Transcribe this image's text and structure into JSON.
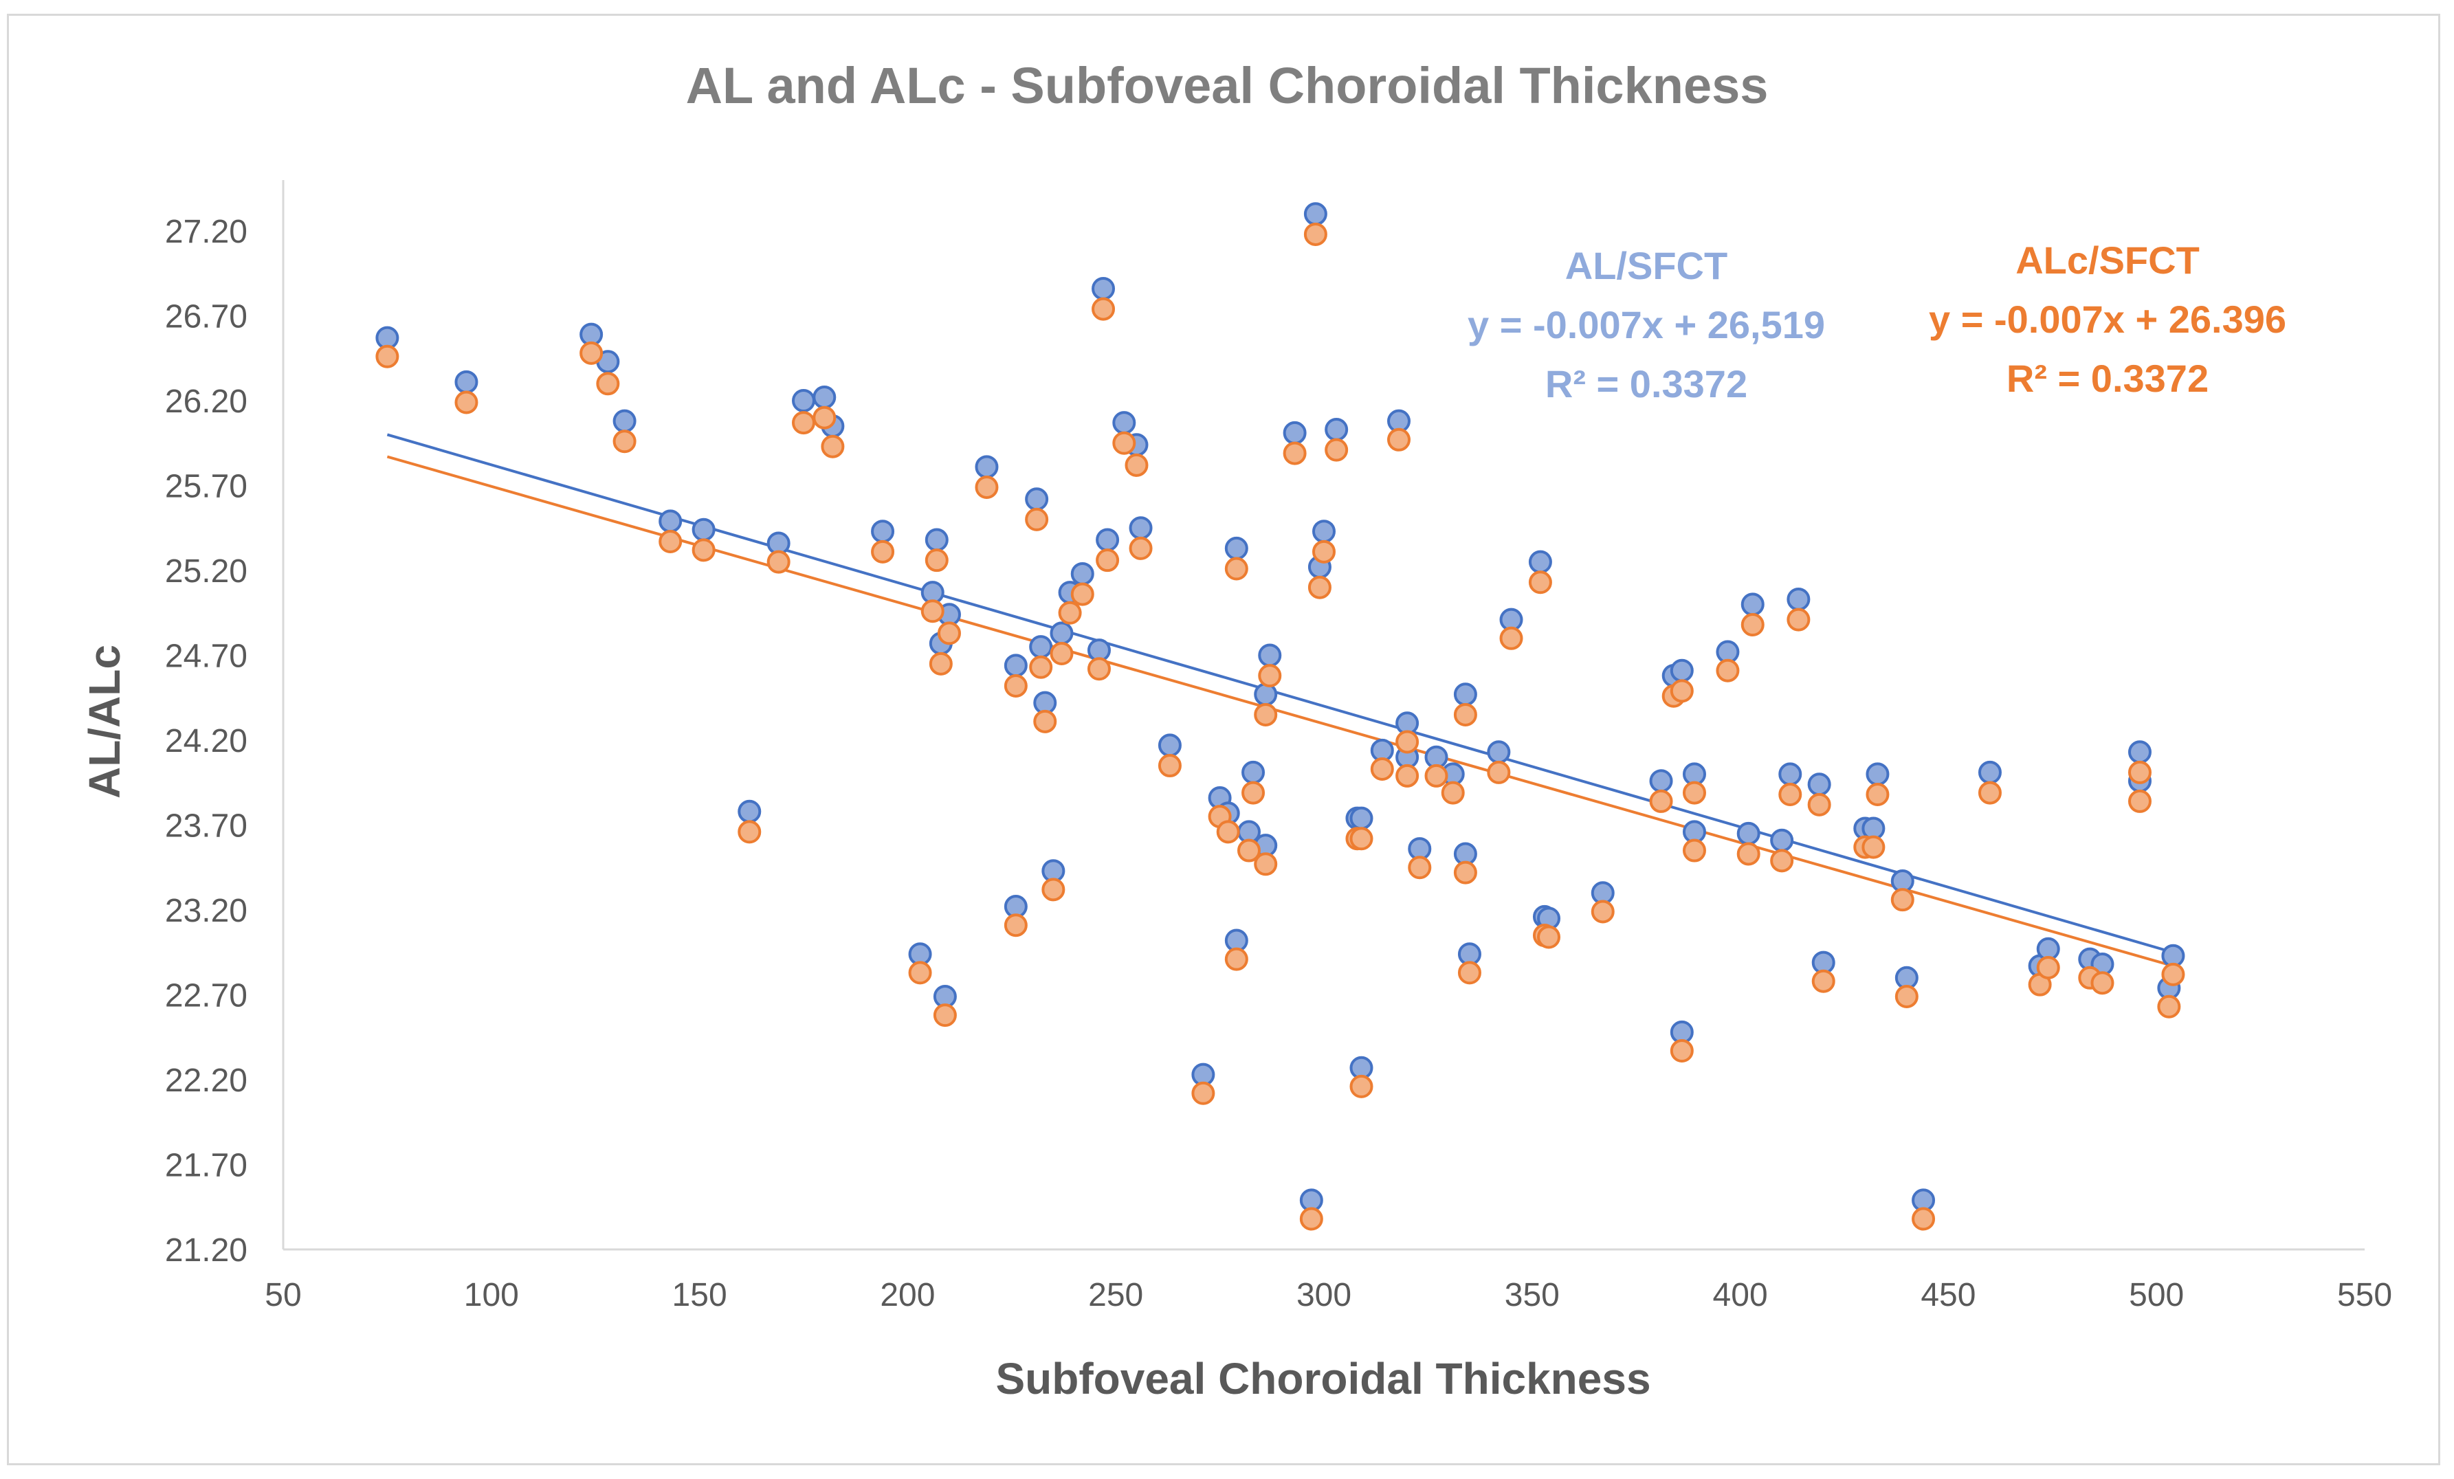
{
  "chart_data": {
    "type": "scatter",
    "title": "AL and ALc - Subfoveal Choroidal Thickness",
    "xlabel": "Subfoveal Choroidal Thickness",
    "ylabel": "AL/ALc",
    "xlim": [
      50,
      550
    ],
    "ylim": [
      21.2,
      27.5
    ],
    "xticks": [
      50,
      100,
      150,
      200,
      250,
      300,
      350,
      400,
      450,
      500,
      550
    ],
    "yticks": [
      21.2,
      21.7,
      22.2,
      22.7,
      23.2,
      23.7,
      24.2,
      24.7,
      25.2,
      25.7,
      26.2,
      26.7,
      27.2
    ],
    "ytick_labels": [
      "21.20",
      "21.70",
      "22.20",
      "22.70",
      "23.20",
      "23.70",
      "24.20",
      "24.70",
      "25.20",
      "25.70",
      "26.20",
      "26.70",
      "27.20"
    ],
    "grid": false,
    "series": [
      {
        "name": "AL",
        "color": "#8faadc",
        "edge_color": "#4472c4",
        "trendline": {
          "x": [
            75,
            504
          ],
          "y": [
            26.0,
            22.95
          ]
        },
        "points": [
          [
            75,
            26.57
          ],
          [
            94,
            26.31
          ],
          [
            124,
            26.59
          ],
          [
            128,
            26.43
          ],
          [
            132,
            26.08
          ],
          [
            143,
            25.49
          ],
          [
            151,
            25.44
          ],
          [
            162,
            23.78
          ],
          [
            169,
            25.36
          ],
          [
            175,
            26.2
          ],
          [
            180,
            26.22
          ],
          [
            182,
            26.05
          ],
          [
            194,
            25.43
          ],
          [
            203,
            22.94
          ],
          [
            206,
            25.07
          ],
          [
            207,
            25.38
          ],
          [
            208,
            24.77
          ],
          [
            209,
            22.69
          ],
          [
            210,
            24.94
          ],
          [
            219,
            25.81
          ],
          [
            226,
            24.64
          ],
          [
            226,
            23.22
          ],
          [
            231,
            25.62
          ],
          [
            232,
            24.75
          ],
          [
            233,
            24.42
          ],
          [
            235,
            23.43
          ],
          [
            237,
            24.83
          ],
          [
            239,
            25.07
          ],
          [
            242,
            25.18
          ],
          [
            246,
            24.73
          ],
          [
            247,
            26.86
          ],
          [
            248,
            25.38
          ],
          [
            252,
            26.07
          ],
          [
            255,
            25.94
          ],
          [
            256,
            25.45
          ],
          [
            263,
            24.17
          ],
          [
            271,
            22.23
          ],
          [
            275,
            23.86
          ],
          [
            277,
            23.77
          ],
          [
            279,
            23.02
          ],
          [
            279,
            25.33
          ],
          [
            282,
            23.66
          ],
          [
            283,
            24.01
          ],
          [
            286,
            23.58
          ],
          [
            286,
            24.47
          ],
          [
            287,
            24.7
          ],
          [
            293,
            26.01
          ],
          [
            297,
            21.49
          ],
          [
            298,
            27.3
          ],
          [
            299,
            25.22
          ],
          [
            300,
            25.43
          ],
          [
            303,
            26.03
          ],
          [
            308,
            23.74
          ],
          [
            309,
            23.74
          ],
          [
            309,
            22.27
          ],
          [
            314,
            24.14
          ],
          [
            318,
            26.08
          ],
          [
            320,
            24.3
          ],
          [
            320,
            24.1
          ],
          [
            323,
            23.56
          ],
          [
            327,
            24.1
          ],
          [
            331,
            24.0
          ],
          [
            334,
            24.47
          ],
          [
            334,
            23.53
          ],
          [
            335,
            22.94
          ],
          [
            342,
            24.13
          ],
          [
            345,
            24.91
          ],
          [
            352,
            25.25
          ],
          [
            353,
            23.16
          ],
          [
            354,
            23.15
          ],
          [
            367,
            23.3
          ],
          [
            381,
            23.96
          ],
          [
            384,
            24.58
          ],
          [
            386,
            24.61
          ],
          [
            386,
            22.48
          ],
          [
            389,
            24.0
          ],
          [
            389,
            23.66
          ],
          [
            397,
            24.72
          ],
          [
            402,
            23.65
          ],
          [
            403,
            25.0
          ],
          [
            410,
            23.61
          ],
          [
            412,
            24.0
          ],
          [
            414,
            25.03
          ],
          [
            419,
            23.94
          ],
          [
            420,
            22.89
          ],
          [
            430,
            23.68
          ],
          [
            432,
            23.68
          ],
          [
            433,
            24.0
          ],
          [
            439,
            23.37
          ],
          [
            440,
            22.8
          ],
          [
            444,
            21.49
          ],
          [
            460,
            24.01
          ],
          [
            472,
            22.87
          ],
          [
            474,
            22.97
          ],
          [
            484,
            22.91
          ],
          [
            487,
            22.88
          ],
          [
            496,
            24.13
          ],
          [
            496,
            23.96
          ],
          [
            503,
            22.74
          ],
          [
            504,
            22.93
          ]
        ]
      },
      {
        "name": "ALc",
        "color": "#f4b183",
        "edge_color": "#ed7d31",
        "trendline": {
          "x": [
            75,
            504
          ],
          "y": [
            25.87,
            22.87
          ]
        },
        "points": [
          [
            75,
            26.46
          ],
          [
            94,
            26.19
          ],
          [
            124,
            26.48
          ],
          [
            128,
            26.3
          ],
          [
            132,
            25.96
          ],
          [
            143,
            25.37
          ],
          [
            151,
            25.32
          ],
          [
            162,
            23.66
          ],
          [
            169,
            25.25
          ],
          [
            175,
            26.07
          ],
          [
            180,
            26.1
          ],
          [
            182,
            25.93
          ],
          [
            194,
            25.31
          ],
          [
            203,
            22.83
          ],
          [
            206,
            24.96
          ],
          [
            207,
            25.26
          ],
          [
            208,
            24.65
          ],
          [
            209,
            22.58
          ],
          [
            210,
            24.83
          ],
          [
            219,
            25.69
          ],
          [
            226,
            24.52
          ],
          [
            226,
            23.11
          ],
          [
            231,
            25.5
          ],
          [
            232,
            24.63
          ],
          [
            233,
            24.31
          ],
          [
            235,
            23.32
          ],
          [
            237,
            24.71
          ],
          [
            239,
            24.95
          ],
          [
            242,
            25.06
          ],
          [
            246,
            24.62
          ],
          [
            247,
            26.74
          ],
          [
            248,
            25.26
          ],
          [
            252,
            25.95
          ],
          [
            255,
            25.82
          ],
          [
            256,
            25.33
          ],
          [
            263,
            24.05
          ],
          [
            271,
            22.12
          ],
          [
            275,
            23.75
          ],
          [
            277,
            23.66
          ],
          [
            279,
            22.91
          ],
          [
            279,
            25.21
          ],
          [
            282,
            23.55
          ],
          [
            283,
            23.89
          ],
          [
            286,
            23.47
          ],
          [
            286,
            24.35
          ],
          [
            287,
            24.58
          ],
          [
            293,
            25.89
          ],
          [
            297,
            21.38
          ],
          [
            298,
            27.18
          ],
          [
            299,
            25.1
          ],
          [
            300,
            25.31
          ],
          [
            303,
            25.91
          ],
          [
            308,
            23.62
          ],
          [
            309,
            23.62
          ],
          [
            309,
            22.16
          ],
          [
            314,
            24.03
          ],
          [
            318,
            25.97
          ],
          [
            320,
            24.19
          ],
          [
            320,
            23.99
          ],
          [
            323,
            23.45
          ],
          [
            327,
            23.99
          ],
          [
            331,
            23.89
          ],
          [
            334,
            24.35
          ],
          [
            334,
            23.42
          ],
          [
            335,
            22.83
          ],
          [
            342,
            24.01
          ],
          [
            345,
            24.8
          ],
          [
            352,
            25.13
          ],
          [
            353,
            23.05
          ],
          [
            354,
            23.04
          ],
          [
            367,
            23.19
          ],
          [
            381,
            23.84
          ],
          [
            384,
            24.46
          ],
          [
            386,
            24.49
          ],
          [
            386,
            22.37
          ],
          [
            389,
            23.89
          ],
          [
            389,
            23.55
          ],
          [
            397,
            24.61
          ],
          [
            402,
            23.53
          ],
          [
            403,
            24.88
          ],
          [
            410,
            23.49
          ],
          [
            412,
            23.88
          ],
          [
            414,
            24.91
          ],
          [
            419,
            23.82
          ],
          [
            420,
            22.78
          ],
          [
            430,
            23.57
          ],
          [
            432,
            23.57
          ],
          [
            433,
            23.88
          ],
          [
            439,
            23.26
          ],
          [
            440,
            22.69
          ],
          [
            444,
            21.38
          ],
          [
            460,
            23.89
          ],
          [
            472,
            22.76
          ],
          [
            474,
            22.86
          ],
          [
            484,
            22.8
          ],
          [
            487,
            22.77
          ],
          [
            496,
            24.01
          ],
          [
            496,
            23.84
          ],
          [
            503,
            22.63
          ],
          [
            504,
            22.82
          ]
        ]
      }
    ],
    "annotations": {
      "al": {
        "label": "AL/SFCT",
        "equation": "y = -0.007x + 26,519",
        "r2": "R² = 0.3372"
      },
      "alc": {
        "label": "ALc/SFCT",
        "equation": "y = -0.007x + 26.396",
        "r2": "R² = 0.3372"
      }
    }
  }
}
